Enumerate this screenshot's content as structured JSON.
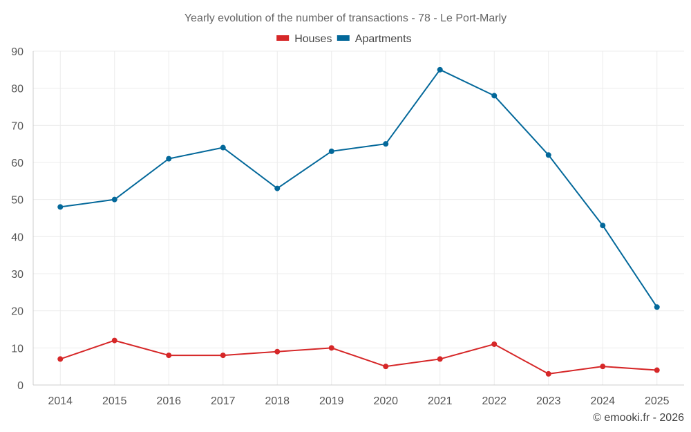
{
  "chart_data": {
    "type": "line",
    "title": "Yearly evolution of the number of transactions - 78 - Le Port-Marly",
    "categories": [
      "2014",
      "2015",
      "2016",
      "2017",
      "2018",
      "2019",
      "2020",
      "2021",
      "2022",
      "2023",
      "2024",
      "2025"
    ],
    "series": [
      {
        "name": "Houses",
        "color": "#d62728",
        "values": [
          7,
          12,
          8,
          8,
          9,
          10,
          5,
          7,
          11,
          3,
          5,
          4
        ]
      },
      {
        "name": "Apartments",
        "color": "#03689a",
        "values": [
          48,
          50,
          61,
          64,
          53,
          63,
          65,
          85,
          78,
          62,
          43,
          21
        ]
      }
    ],
    "ylim": [
      0,
      90
    ],
    "yticks": [
      0,
      10,
      20,
      30,
      40,
      50,
      60,
      70,
      80,
      90
    ],
    "grid": true,
    "legend": "top-center",
    "xlabel": "",
    "ylabel": ""
  },
  "credit": "© emooki.fr - 2026"
}
